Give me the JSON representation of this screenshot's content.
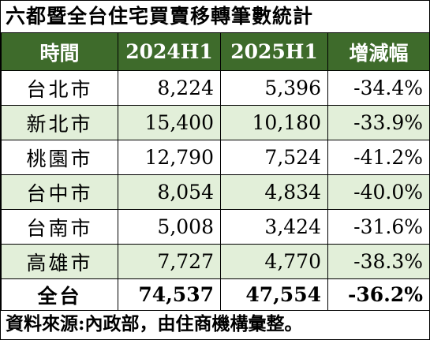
{
  "title": "六都暨全台住宅買賣移轉筆數統計",
  "table": {
    "header": [
      "時間",
      "2024H1",
      "2025H1",
      "增減幅"
    ],
    "rows": [
      [
        "台北市",
        "8,224",
        "5,396",
        "-34.4%"
      ],
      [
        "新北市",
        "15,400",
        "10,180",
        "-33.9%"
      ],
      [
        "桃園市",
        "12,790",
        "7,524",
        "-41.2%"
      ],
      [
        "台中市",
        "8,054",
        "4,834",
        "-40.0%"
      ],
      [
        "台南市",
        "5,008",
        "3,424",
        "-31.6%"
      ],
      [
        "高雄市",
        "7,727",
        "4,770",
        "-38.3%"
      ],
      [
        "全台",
        "74,537",
        "47,554",
        "-36.2%"
      ]
    ]
  },
  "footer": "資料來源:內政部，由住商機構彙整。"
}
